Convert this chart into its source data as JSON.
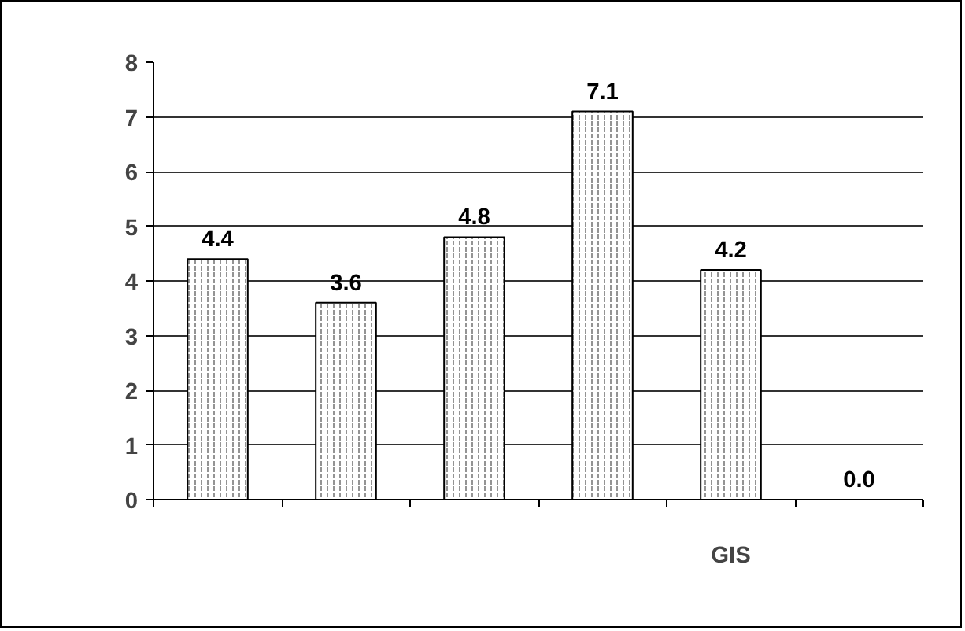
{
  "chart_data": {
    "type": "bar",
    "categories": [
      null,
      null,
      null,
      null,
      "GIS",
      null
    ],
    "values": [
      4.4,
      3.6,
      4.8,
      7.1,
      4.2,
      0.0
    ],
    "color": "#ffffff",
    "value_labels": [
      "4.4",
      "3.6",
      "4.8",
      "7.1",
      "4.2",
      "0.0"
    ],
    "ylim": [
      0,
      8
    ],
    "yticks": [
      0,
      1,
      2,
      3,
      4,
      5,
      6,
      7,
      8
    ],
    "grid": "y"
  }
}
